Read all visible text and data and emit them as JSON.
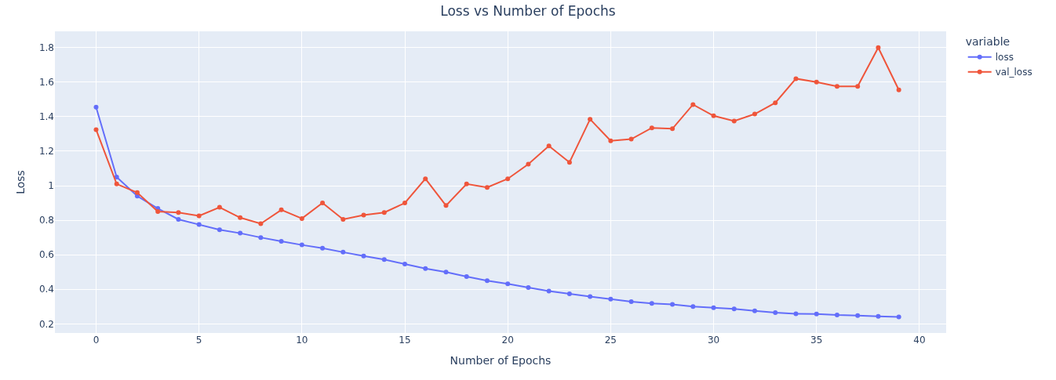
{
  "chart_data": {
    "type": "line",
    "title": "Loss vs Number of Epochs",
    "xlabel": "Number of Epochs",
    "ylabel": "Loss",
    "legend_title": "variable",
    "x": [
      0,
      1,
      2,
      3,
      4,
      5,
      6,
      7,
      8,
      9,
      10,
      11,
      12,
      13,
      14,
      15,
      16,
      17,
      18,
      19,
      20,
      21,
      22,
      23,
      24,
      25,
      26,
      27,
      28,
      29,
      30,
      31,
      32,
      33,
      34,
      35,
      36,
      37,
      38,
      39
    ],
    "series": [
      {
        "name": "loss",
        "color": "#636efa",
        "values": [
          1.455,
          1.05,
          0.94,
          0.868,
          0.805,
          0.775,
          0.745,
          0.725,
          0.7,
          0.678,
          0.657,
          0.638,
          0.615,
          0.593,
          0.572,
          0.546,
          0.52,
          0.5,
          0.474,
          0.45,
          0.432,
          0.41,
          0.39,
          0.374,
          0.358,
          0.343,
          0.328,
          0.318,
          0.313,
          0.3,
          0.293,
          0.286,
          0.275,
          0.265,
          0.258,
          0.257,
          0.251,
          0.248,
          0.243,
          0.24
        ]
      },
      {
        "name": "val_loss",
        "color": "#ef553b",
        "values": [
          1.325,
          1.01,
          0.96,
          0.85,
          0.845,
          0.825,
          0.875,
          0.815,
          0.78,
          0.86,
          0.81,
          0.9,
          0.805,
          0.83,
          0.845,
          0.9,
          1.04,
          0.885,
          1.01,
          0.99,
          1.04,
          1.125,
          1.23,
          1.135,
          1.385,
          1.26,
          1.27,
          1.335,
          1.33,
          1.47,
          1.405,
          1.375,
          1.415,
          1.48,
          1.62,
          1.6,
          1.575,
          1.575,
          1.8,
          1.555
        ]
      }
    ],
    "xlim": [
      -2,
      41.3
    ],
    "xticks": [
      0,
      5,
      10,
      15,
      20,
      25,
      30,
      35,
      40
    ],
    "ylim": [
      0.147,
      1.894
    ],
    "yticks": [
      0.2,
      0.4,
      0.6,
      0.8,
      1,
      1.2,
      1.4,
      1.6,
      1.8
    ],
    "grid": true,
    "legend": "top right",
    "marker": "circle",
    "line_style": "solid"
  }
}
